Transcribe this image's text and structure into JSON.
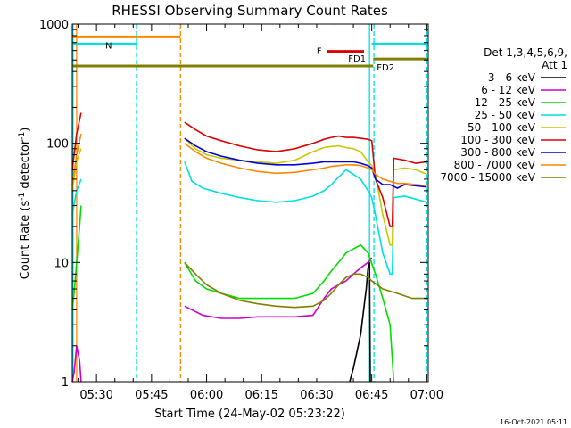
{
  "chart_data": {
    "type": "line",
    "title": "RHESSI Observing Summary Count Rates",
    "xlabel": "Start Time (24-May-02 05:23:22)",
    "ylabel": "Count Rate (s⁻¹ detector⁻¹)",
    "ylabel_base": "Count Rate (s",
    "ylabel_mid": " detector",
    "ylabel_end": ")",
    "ylabel_sup": "-1",
    "x_range_minutes": [
      0,
      97
    ],
    "x_ticks": [
      {
        "label": "05:30",
        "minute": 6.6
      },
      {
        "label": "05:45",
        "minute": 21.6
      },
      {
        "label": "06:00",
        "minute": 36.6
      },
      {
        "label": "06:15",
        "minute": 51.6
      },
      {
        "label": "06:30",
        "minute": 66.6
      },
      {
        "label": "06:45",
        "minute": 81.6
      },
      {
        "label": "07:00",
        "minute": 96.6
      }
    ],
    "y_scale": "log",
    "ylim": [
      1,
      1000
    ],
    "y_ticks": [
      {
        "label": "1",
        "value": 1
      },
      {
        "label": "10",
        "value": 10
      },
      {
        "label": "100",
        "value": 100
      },
      {
        "label": "1000",
        "value": 1000
      }
    ],
    "legend_header": [
      "Det 1,3,4,5,6,9,",
      "Att 1"
    ],
    "legend_placement": "right",
    "series": [
      {
        "name": "3 - 6 keV",
        "color": "#000000",
        "segments": [
          [
            [
              75.6,
              1
            ],
            [
              76.6,
              1.3
            ],
            [
              77.6,
              1.8
            ],
            [
              78.6,
              2.5
            ],
            [
              79.6,
              4.5
            ],
            [
              80.1,
              6
            ],
            [
              80.6,
              9
            ],
            [
              81.0,
              10
            ],
            [
              81.2,
              1
            ]
          ]
        ]
      },
      {
        "name": "6 - 12 keV",
        "color": "#cc00cc",
        "segments": [
          [
            [
              0,
              1
            ],
            [
              0.5,
              1.2
            ],
            [
              1.2,
              2.0
            ],
            [
              2.0,
              1.5
            ],
            [
              2.4,
              1
            ]
          ],
          [
            [
              30.6,
              4.3
            ],
            [
              35.6,
              3.6
            ],
            [
              40.6,
              3.4
            ],
            [
              45.6,
              3.4
            ],
            [
              50.6,
              3.5
            ],
            [
              55.6,
              3.5
            ],
            [
              60.6,
              3.5
            ],
            [
              65.6,
              3.6
            ],
            [
              68.6,
              5
            ],
            [
              70.6,
              6
            ],
            [
              72.6,
              6.5
            ],
            [
              74.6,
              7
            ],
            [
              76.6,
              8
            ],
            [
              78.6,
              9
            ],
            [
              80.6,
              10
            ],
            [
              81.6,
              11
            ]
          ]
        ]
      },
      {
        "name": "12 - 25 keV",
        "color": "#00dd00",
        "segments": [
          [
            [
              0,
              4
            ],
            [
              0.6,
              6
            ],
            [
              1.2,
              10
            ],
            [
              2.0,
              20
            ],
            [
              2.4,
              30
            ]
          ],
          [
            [
              30.6,
              10
            ],
            [
              33.6,
              7
            ],
            [
              36.6,
              6
            ],
            [
              40.6,
              5.5
            ],
            [
              45.6,
              5
            ],
            [
              50.6,
              5
            ],
            [
              55.6,
              5
            ],
            [
              60.6,
              5
            ],
            [
              65.6,
              5.5
            ],
            [
              68.6,
              7
            ],
            [
              70.6,
              8.5
            ],
            [
              72.6,
              10
            ],
            [
              74.6,
              12
            ],
            [
              76.6,
              13
            ],
            [
              78.6,
              14
            ],
            [
              80.6,
              12
            ],
            [
              82.6,
              8
            ],
            [
              84.6,
              5
            ],
            [
              86.6,
              3
            ],
            [
              87.6,
              1
            ]
          ]
        ]
      },
      {
        "name": "25 - 50 keV",
        "color": "#00e0e0",
        "segments": [
          [
            [
              0,
              25
            ],
            [
              0.6,
              32
            ],
            [
              1.2,
              40
            ],
            [
              2.0,
              46
            ],
            [
              2.4,
              50
            ]
          ],
          [
            [
              30.6,
              70
            ],
            [
              32.6,
              48
            ],
            [
              35.6,
              42
            ],
            [
              40.6,
              38
            ],
            [
              45.6,
              35
            ],
            [
              50.6,
              33
            ],
            [
              55.6,
              32
            ],
            [
              60.6,
              33
            ],
            [
              65.6,
              36
            ],
            [
              68.6,
              40
            ],
            [
              70.6,
              45
            ],
            [
              72.6,
              52
            ],
            [
              74.6,
              60
            ],
            [
              76.6,
              55
            ],
            [
              78.6,
              50
            ],
            [
              80.6,
              40
            ],
            [
              81.6,
              35
            ],
            [
              82.6,
              25
            ],
            [
              84.6,
              12
            ],
            [
              86.6,
              8
            ],
            [
              87.2,
              8
            ],
            [
              87.6,
              35
            ],
            [
              90.6,
              36
            ],
            [
              93.6,
              34
            ],
            [
              96.6,
              32
            ]
          ]
        ]
      },
      {
        "name": "50 - 100 keV",
        "color": "#c8c800",
        "segments": [
          [
            [
              0,
              40
            ],
            [
              1.2,
              70
            ],
            [
              2.4,
              90
            ]
          ],
          [
            [
              30.6,
              110
            ],
            [
              33.6,
              90
            ],
            [
              36.6,
              80
            ],
            [
              40.6,
              75
            ],
            [
              45.6,
              72
            ],
            [
              50.6,
              70
            ],
            [
              55.6,
              68
            ],
            [
              60.6,
              72
            ],
            [
              65.6,
              85
            ],
            [
              68.6,
              92
            ],
            [
              70.6,
              94
            ],
            [
              72.6,
              95
            ],
            [
              74.6,
              92
            ],
            [
              76.6,
              90
            ],
            [
              78.6,
              85
            ],
            [
              80.6,
              70
            ],
            [
              81.6,
              65
            ],
            [
              82.6,
              55
            ],
            [
              84.6,
              25
            ],
            [
              86.6,
              14
            ],
            [
              87.2,
              14
            ],
            [
              87.6,
              60
            ],
            [
              90.6,
              62
            ],
            [
              93.6,
              60
            ],
            [
              96.6,
              55
            ]
          ]
        ]
      },
      {
        "name": "100 - 300 keV",
        "color": "#dd0000",
        "segments": [
          [
            [
              0,
              60
            ],
            [
              1.2,
              120
            ],
            [
              2.4,
              180
            ]
          ],
          [
            [
              30.6,
              150
            ],
            [
              33.6,
              130
            ],
            [
              36.6,
              115
            ],
            [
              40.6,
              105
            ],
            [
              45.6,
              95
            ],
            [
              50.6,
              88
            ],
            [
              55.6,
              85
            ],
            [
              60.6,
              90
            ],
            [
              65.6,
              100
            ],
            [
              68.6,
              108
            ],
            [
              70.6,
              112
            ],
            [
              72.6,
              115
            ],
            [
              74.6,
              112
            ],
            [
              76.6,
              112
            ],
            [
              78.6,
              110
            ],
            [
              80.6,
              108
            ],
            [
              81.6,
              105
            ],
            [
              82.6,
              50
            ],
            [
              84.6,
              35
            ],
            [
              86.6,
              20
            ],
            [
              87.2,
              20
            ],
            [
              87.6,
              75
            ],
            [
              90.6,
              72
            ],
            [
              93.6,
              68
            ],
            [
              96.6,
              70
            ]
          ]
        ]
      },
      {
        "name": "300 - 800 keV",
        "color": "#0000dd",
        "segments": [
          [
            [
              30.6,
              110
            ],
            [
              33.6,
              95
            ],
            [
              36.6,
              85
            ],
            [
              40.6,
              78
            ],
            [
              45.6,
              72
            ],
            [
              50.6,
              68
            ],
            [
              55.6,
              66
            ],
            [
              60.6,
              66
            ],
            [
              65.6,
              68
            ],
            [
              68.6,
              70
            ],
            [
              70.6,
              70
            ],
            [
              72.6,
              70
            ],
            [
              74.6,
              70
            ],
            [
              76.6,
              70
            ],
            [
              78.6,
              68
            ],
            [
              80.6,
              65
            ],
            [
              81.6,
              62
            ],
            [
              82.6,
              50
            ],
            [
              84.6,
              45
            ],
            [
              86.6,
              45
            ],
            [
              88.6,
              42
            ],
            [
              90.6,
              45
            ],
            [
              93.6,
              44
            ],
            [
              96.6,
              43
            ]
          ]
        ]
      },
      {
        "name": "800 - 7000 keV",
        "color": "#ff8800",
        "segments": [
          [
            [
              0,
              45
            ],
            [
              1.2,
              80
            ],
            [
              2.4,
              120
            ]
          ],
          [
            [
              30.6,
              100
            ],
            [
              33.6,
              85
            ],
            [
              36.6,
              75
            ],
            [
              40.6,
              68
            ],
            [
              45.6,
              62
            ],
            [
              50.6,
              58
            ],
            [
              55.6,
              56
            ],
            [
              60.6,
              57
            ],
            [
              65.6,
              60
            ],
            [
              68.6,
              62
            ],
            [
              70.6,
              64
            ],
            [
              72.6,
              65
            ],
            [
              74.6,
              66
            ],
            [
              76.6,
              66
            ],
            [
              78.6,
              65
            ],
            [
              80.6,
              62
            ],
            [
              81.6,
              60
            ],
            [
              82.6,
              55
            ],
            [
              84.6,
              50
            ],
            [
              86.6,
              48
            ],
            [
              88.6,
              46
            ],
            [
              90.6,
              46
            ],
            [
              93.6,
              45
            ],
            [
              96.6,
              44
            ]
          ]
        ]
      },
      {
        "name": "7000 - 15000 keV",
        "color": "#808000",
        "segments": [
          [
            [
              30.6,
              10
            ],
            [
              33.6,
              8
            ],
            [
              36.6,
              6.5
            ],
            [
              40.6,
              5.5
            ],
            [
              45.6,
              4.8
            ],
            [
              50.6,
              4.5
            ],
            [
              55.6,
              4.3
            ],
            [
              60.6,
              4.2
            ],
            [
              65.6,
              4.3
            ],
            [
              68.6,
              4.8
            ],
            [
              70.6,
              5.5
            ],
            [
              72.6,
              6.5
            ],
            [
              74.6,
              7.5
            ],
            [
              76.6,
              8
            ],
            [
              78.6,
              8
            ],
            [
              80.6,
              7.5
            ],
            [
              81.6,
              7
            ],
            [
              84.6,
              6
            ],
            [
              88.6,
              5.5
            ],
            [
              92.6,
              5
            ],
            [
              96.6,
              5
            ]
          ]
        ]
      }
    ],
    "state_bars": [
      {
        "label": "",
        "color": "#ff8800",
        "x0": 0,
        "x1": 29.5,
        "value": 780
      },
      {
        "label": "N",
        "color": "#00e0e0",
        "x0": 0,
        "x1": 17.5,
        "value": 680
      },
      {
        "label": "F",
        "color": "#dd0000",
        "x0": 69.5,
        "x1": 79.5,
        "value": 590
      },
      {
        "label": "FD1",
        "color": "#808000",
        "x0": 82.0,
        "x1": 97,
        "value": 510
      },
      {
        "label": "FD2",
        "color": "#808000",
        "x0": 0,
        "x1": 82.0,
        "value": 445
      },
      {
        "label": "",
        "color": "#00e0e0",
        "x0": 81.6,
        "x1": 97,
        "value": 680
      }
    ],
    "vertical_markers": [
      {
        "minute": 1.2,
        "color": "#ff8800",
        "style": "solid"
      },
      {
        "minute": 0.2,
        "color": "#00e0e0",
        "style": "solid"
      },
      {
        "minute": 17.5,
        "color": "#00e0e0",
        "style": "dashed"
      },
      {
        "minute": 29.5,
        "color": "#ff8800",
        "style": "dashed"
      },
      {
        "minute": 81.0,
        "color": "#00e0e0",
        "style": "solid"
      },
      {
        "minute": 82.2,
        "color": "#00e0e0",
        "style": "dashed"
      },
      {
        "minute": 96.6,
        "color": "#00e0e0",
        "style": "dashed"
      }
    ]
  },
  "footer_timestamp": "16-Oct-2021 05:11"
}
